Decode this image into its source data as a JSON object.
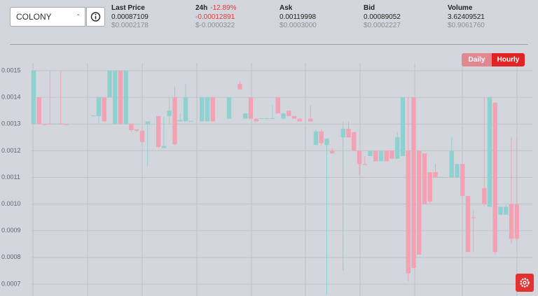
{
  "header": {
    "select": "COLONY",
    "stats": [
      {
        "label": "Last Price",
        "value": "0.00087109",
        "usd": "$0.0002178"
      },
      {
        "label": "24h",
        "change": "-12.89%",
        "value": "-0.00012891",
        "usd": "$-0.0000322"
      },
      {
        "label": "Ask",
        "value": "0.00119998",
        "usd": "$0.0003000"
      },
      {
        "label": "Bid",
        "value": "0.00089052",
        "usd": "$0.0002227"
      },
      {
        "label": "Volume",
        "value": "3.62409521",
        "usd": "$0.9061760"
      }
    ]
  },
  "buttons": [
    "Daily",
    "Hourly"
  ],
  "chart_data": {
    "type": "candlestick",
    "up_color": "#8fd1d0",
    "down_color": "#f2a2b2",
    "grid": true,
    "ylim": [
      0.00065,
      0.00153
    ],
    "yticks": [
      0.0015,
      0.0014,
      0.0013,
      0.0012,
      0.0011,
      {
        "value": 0.001,
        "label": "0.0010"
      },
      0.0009,
      0.0008,
      0.0007
    ],
    "categories": [
      null,
      null,
      null,
      null,
      null,
      null,
      null,
      null,
      null,
      null,
      null,
      null,
      null,
      null,
      null,
      null,
      null,
      null,
      null,
      null,
      null,
      null,
      null,
      null,
      null,
      null,
      null,
      null,
      null,
      null,
      null,
      null,
      null,
      null,
      null,
      null,
      null,
      null,
      null,
      null,
      null,
      null,
      null,
      null,
      null,
      null,
      null,
      null,
      null,
      null,
      null,
      null,
      null,
      null,
      null,
      null,
      null,
      null,
      null,
      null,
      null,
      null,
      null,
      null,
      null,
      null,
      null,
      null,
      null,
      null,
      null,
      null,
      null,
      null,
      null,
      null,
      null,
      null,
      null,
      null,
      null,
      null,
      null,
      null,
      null,
      null,
      null,
      null,
      null,
      null
    ],
    "open": [
      0.0013,
      0.0014,
      0.0013,
      0.001302,
      0.0013,
      0.001302,
      0.0013,
      null,
      null,
      null,
      null,
      0.00133,
      0.00133,
      0.0014,
      0.0014,
      0.0013,
      0.0015,
      0.0013,
      0.0013,
      0.00128,
      0.001275,
      0.0013,
      null,
      0.00133,
      0.00121,
      0.00133,
      0.0014,
      0.00131,
      0.00131,
      0.00131,
      null,
      0.00131,
      0.00131,
      0.0014,
      null,
      null,
      0.00132,
      null,
      0.00145,
      0.00132,
      0.0014,
      0.00132,
      0.00132,
      0.00132,
      0.00132,
      0.0014,
      0.00132,
      0.00135,
      0.00133,
      0.00132,
      null,
      0.00132,
      0.001222,
      0.001272,
      0.001222,
      0.0012,
      null,
      0.00125,
      0.001282,
      0.00127,
      0.0012,
      0.00115,
      0.00118,
      0.0012,
      0.00116,
      0.0012,
      0.0012,
      0.00117,
      0.00118,
      0.0012,
      0.0014,
      0.0012,
      0.00119,
      0.00112,
      0.00112,
      0.0011,
      null,
      0.0011,
      0.0011,
      0.00115,
      0.00103,
      0.00095,
      null,
      0.00106,
      0.00099,
      0.00138,
      0.00096,
      0.00096,
      0.001,
      0.001
    ],
    "high": [
      0.0015,
      0.0014,
      0.0013,
      0.0015,
      0.0013,
      0.0015,
      0.0013,
      null,
      null,
      null,
      null,
      0.00133,
      0.0014,
      0.0014,
      0.0015,
      0.0015,
      0.0015,
      0.0015,
      0.0013,
      0.00128,
      0.001275,
      0.00131,
      null,
      0.00133,
      0.00133,
      0.0014,
      0.00144,
      0.00134,
      0.00145,
      0.00131,
      null,
      0.0014,
      0.0014,
      0.0014,
      null,
      null,
      0.0014,
      null,
      0.00146,
      0.00134,
      0.0014,
      0.00132,
      0.00132,
      0.00132,
      0.00137,
      0.0014,
      0.00134,
      0.00135,
      0.00133,
      0.00132,
      null,
      0.00137,
      0.00128,
      0.00128,
      0.001245,
      0.00121,
      null,
      0.00131,
      0.00131,
      0.00127,
      0.0012,
      0.00118,
      0.0012,
      0.0012,
      0.0012,
      0.0012,
      0.0012,
      0.00127,
      0.0014,
      0.0014,
      0.0014,
      0.0012,
      0.00119,
      0.00112,
      0.00115,
      0.0011,
      null,
      0.00125,
      0.00115,
      0.00115,
      0.00103,
      0.00098,
      null,
      0.0014,
      0.0014,
      0.00138,
      0.00099,
      0.001,
      0.00125,
      0.00125
    ],
    "low": [
      0.0013,
      0.0013,
      0.001295,
      0.0013,
      0.0013,
      0.0013,
      0.001298,
      null,
      null,
      null,
      null,
      0.00133,
      0.0013,
      0.00131,
      0.0014,
      0.0013,
      0.0013,
      0.0013,
      0.00127,
      0.00127,
      0.00123,
      0.00114,
      null,
      0.00121,
      0.00121,
      0.0013,
      0.00122,
      0.00131,
      0.00131,
      0.00131,
      null,
      0.00131,
      0.00131,
      0.00131,
      null,
      null,
      0.00132,
      null,
      0.00143,
      0.00132,
      0.00132,
      0.00131,
      0.00132,
      0.00132,
      0.00132,
      0.00134,
      0.00132,
      0.00133,
      0.00132,
      0.00131,
      null,
      0.00131,
      0.00122,
      0.00122,
      0.00066,
      0.00119,
      null,
      0.00075,
      0.00125,
      0.0012,
      0.00111,
      0.00115,
      0.00118,
      0.00116,
      0.00116,
      0.00116,
      0.00117,
      0.00117,
      0.00118,
      0.00071,
      0.00076,
      0.00081,
      0.001,
      0.001,
      0.0011,
      0.0011,
      null,
      0.0011,
      0.0011,
      0.00103,
      0.00082,
      0.00082,
      null,
      0.00099,
      0.00099,
      0.00081,
      0.00096,
      0.00096,
      0.00085,
      0.00086
    ],
    "close": [
      0.0015,
      0.0013,
      0.001298,
      0.0013,
      0.001302,
      0.0013,
      0.001299,
      null,
      null,
      null,
      null,
      0.001332,
      0.0014,
      0.00131,
      0.0015,
      0.0015,
      0.0013,
      0.0015,
      0.001277,
      0.001275,
      0.001233,
      0.00131,
      null,
      0.001214,
      0.001218,
      0.00135,
      0.001224,
      0.001315,
      0.0014,
      0.001312,
      null,
      0.0014,
      0.0014,
      0.00131,
      null,
      null,
      0.0014,
      null,
      0.00143,
      0.00134,
      0.00132,
      0.00131,
      0.001322,
      0.001322,
      0.001322,
      0.00134,
      0.00134,
      0.00133,
      0.00132,
      0.00131,
      null,
      0.00131,
      0.001272,
      0.001228,
      0.001245,
      0.00119,
      null,
      0.001282,
      0.00125,
      0.0012,
      0.00115,
      0.001148,
      0.0012,
      0.00116,
      0.0012,
      0.00116,
      0.00117,
      0.00125,
      0.0014,
      0.00074,
      0.00076,
      0.00081,
      0.001,
      0.00101,
      0.0011,
      0.001102,
      null,
      0.0012,
      0.00115,
      0.00103,
      0.00082,
      0.000948,
      null,
      0.001,
      0.0014,
      0.00082,
      0.00099,
      0.00099,
      0.00087,
      0.00087
    ]
  }
}
